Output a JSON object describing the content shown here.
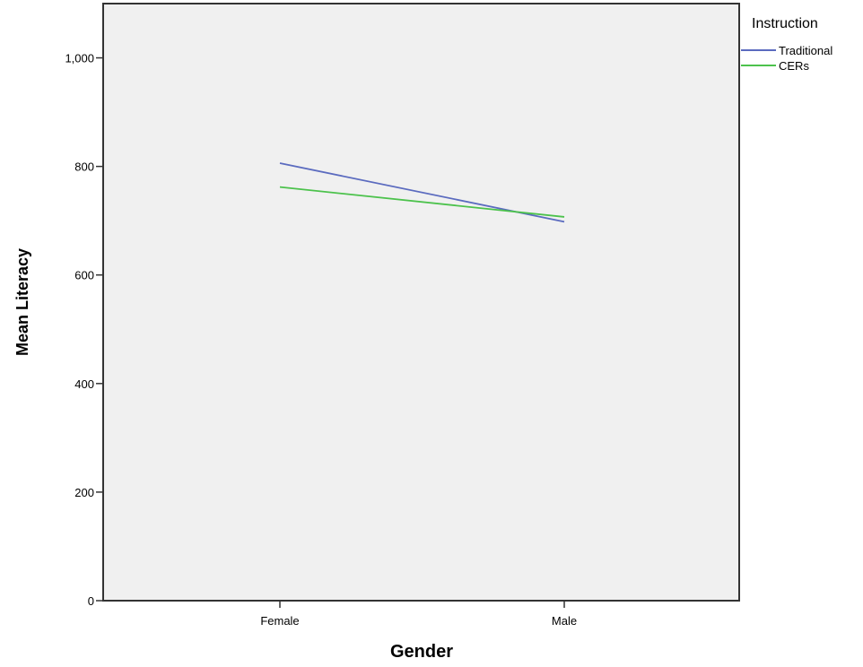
{
  "chart_data": {
    "type": "line",
    "categories": [
      "Female",
      "Male"
    ],
    "series": [
      {
        "name": "Traditional",
        "values": [
          806,
          698
        ],
        "color": "#5b6bbf"
      },
      {
        "name": "CERs",
        "values": [
          762,
          707
        ],
        "color": "#4cc24c"
      }
    ],
    "xlabel": "Gender",
    "ylabel": "Mean Literacy",
    "ylim": [
      0,
      1100
    ],
    "yticks": [
      0,
      200,
      400,
      600,
      800,
      1000
    ],
    "ytick_labels": [
      "0",
      "200",
      "400",
      "600",
      "800",
      "1,000"
    ],
    "legend": {
      "title": "Instruction",
      "position": "top-right"
    },
    "plot_background": "#f0f0f0",
    "grid": false
  }
}
